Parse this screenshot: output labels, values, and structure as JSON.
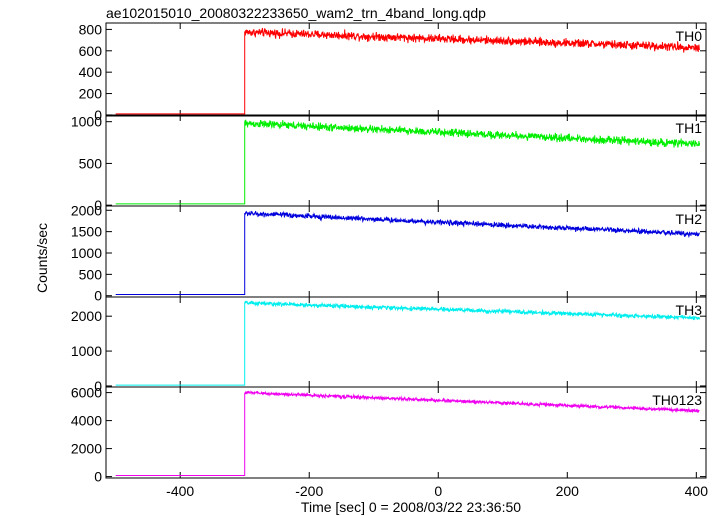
{
  "chart_data": {
    "type": "line",
    "title": "ae102015010_20080322233650_wam2_trn_4band_long.qdp",
    "xlabel": "Time [sec] 0 = 2008/03/22 23:36:50",
    "ylabel": "Counts/sec",
    "xlim": [
      -515,
      415
    ],
    "x_ticks": [
      -400,
      -200,
      0,
      200,
      400
    ],
    "grid": false,
    "panels": [
      {
        "name": "TH0",
        "color": "#ff0000",
        "ylim": [
          -10,
          860
        ],
        "y_ticks": [
          0,
          200,
          400,
          600,
          800
        ],
        "baseline": 10,
        "step_at": -300,
        "start_level": 775,
        "end_level": 630,
        "noise": 30,
        "x_range": [
          -500,
          405
        ]
      },
      {
        "name": "TH1",
        "color": "#00ee00",
        "ylim": [
          -10,
          1080
        ],
        "y_ticks": [
          0,
          500,
          1000
        ],
        "baseline": 15,
        "step_at": -300,
        "start_level": 980,
        "end_level": 730,
        "noise": 35,
        "x_range": [
          -500,
          405
        ]
      },
      {
        "name": "TH2",
        "color": "#0000dd",
        "ylim": [
          -30,
          2100
        ],
        "y_ticks": [
          0,
          500,
          1000,
          1500,
          2000
        ],
        "baseline": 30,
        "step_at": -300,
        "start_level": 1930,
        "end_level": 1440,
        "noise": 45,
        "x_range": [
          -500,
          405
        ]
      },
      {
        "name": "TH3",
        "color": "#00eeee",
        "ylim": [
          -30,
          2550
        ],
        "y_ticks": [
          0,
          1000,
          2000
        ],
        "baseline": 25,
        "step_at": -300,
        "start_level": 2380,
        "end_level": 1950,
        "noise": 45,
        "x_range": [
          -500,
          405
        ]
      },
      {
        "name": "TH0123",
        "color": "#ee00ee",
        "ylim": [
          -100,
          6400
        ],
        "y_ticks": [
          0,
          2000,
          4000,
          6000
        ],
        "baseline": 80,
        "step_at": -300,
        "start_level": 6000,
        "end_level": 4700,
        "noise": 90,
        "x_range": [
          -500,
          405
        ]
      }
    ]
  }
}
